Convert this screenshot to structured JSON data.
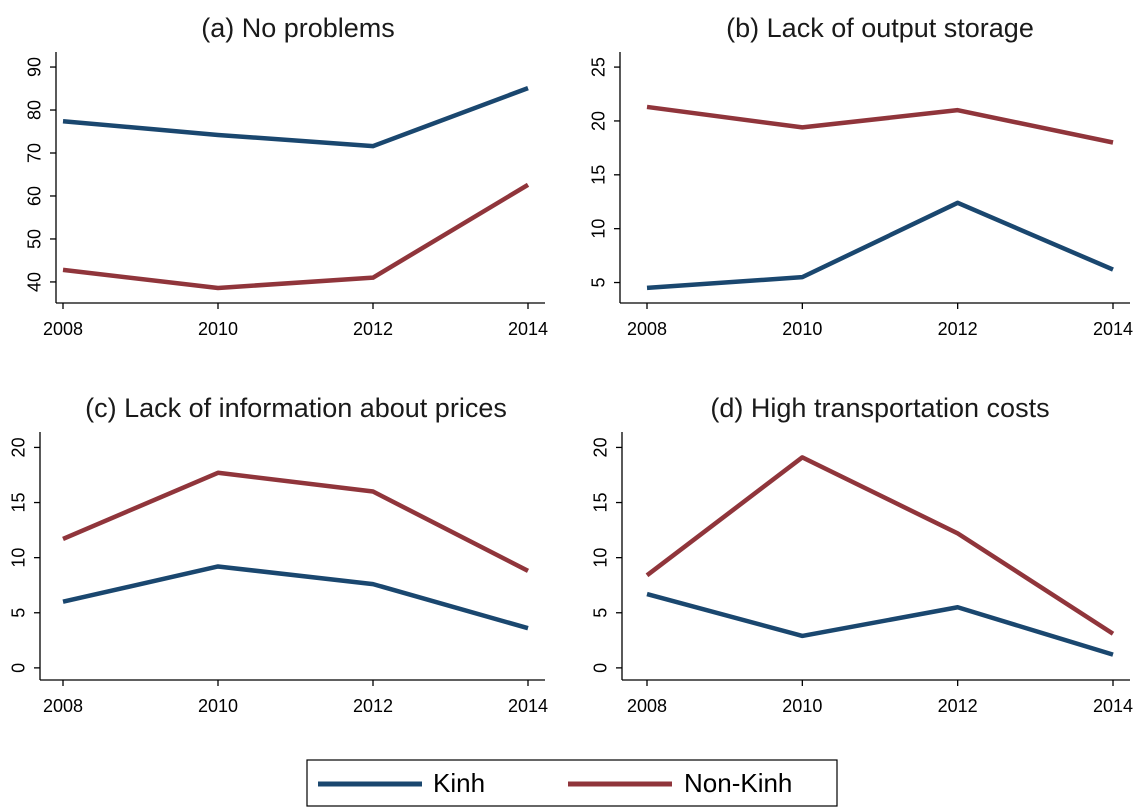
{
  "chart_data": [
    {
      "type": "line",
      "title": "(a) No problems",
      "x": [
        2008,
        2010,
        2012,
        2014
      ],
      "xlim": [
        2008,
        2014
      ],
      "xticks": [
        2008,
        2010,
        2012,
        2014
      ],
      "ylim": [
        35.1,
        93.5
      ],
      "yticks": [
        40,
        50,
        60,
        70,
        80,
        90
      ],
      "series": [
        {
          "name": "Kinh",
          "color": "#1a476f",
          "values": [
            77.4,
            74.2,
            71.6,
            85.1
          ]
        },
        {
          "name": "Non-Kinh",
          "color": "#90353b",
          "values": [
            42.8,
            38.6,
            41,
            62.6
          ]
        }
      ]
    },
    {
      "type": "line",
      "title": "(b) Lack of output storage",
      "x": [
        2008,
        2010,
        2012,
        2014
      ],
      "xlim": [
        2008,
        2014
      ],
      "xticks": [
        2008,
        2010,
        2012,
        2014
      ],
      "ylim": [
        3.1,
        26.4
      ],
      "yticks": [
        5,
        10,
        15,
        20,
        25
      ],
      "series": [
        {
          "name": "Kinh",
          "color": "#1a476f",
          "values": [
            4.5,
            5.5,
            12.4,
            6.2
          ]
        },
        {
          "name": "Non-Kinh",
          "color": "#90353b",
          "values": [
            21.3,
            19.4,
            21.0,
            18.0
          ]
        }
      ]
    },
    {
      "type": "line",
      "title": "(c) Lack of information about prices",
      "x": [
        2008,
        2010,
        2012,
        2014
      ],
      "xlim": [
        2008,
        2014
      ],
      "xticks": [
        2008,
        2010,
        2012,
        2014
      ],
      "ylim": [
        -1.1,
        21.4
      ],
      "yticks": [
        0,
        5,
        10,
        15,
        20
      ],
      "series": [
        {
          "name": "Kinh",
          "color": "#1a476f",
          "values": [
            6.0,
            9.2,
            7.6,
            3.6
          ]
        },
        {
          "name": "Non-Kinh",
          "color": "#90353b",
          "values": [
            11.7,
            17.7,
            16.0,
            8.8
          ]
        }
      ]
    },
    {
      "type": "line",
      "title": "(d) High transportation costs",
      "x": [
        2008,
        2010,
        2012,
        2014
      ],
      "xlim": [
        2008,
        2014
      ],
      "xticks": [
        2008,
        2010,
        2012,
        2014
      ],
      "ylim": [
        -1.1,
        21.4
      ],
      "yticks": [
        0,
        5,
        10,
        15,
        20
      ],
      "series": [
        {
          "name": "Kinh",
          "color": "#1a476f",
          "values": [
            6.7,
            2.9,
            5.5,
            1.2
          ]
        },
        {
          "name": "Non-Kinh",
          "color": "#90353b",
          "values": [
            8.4,
            19.1,
            12.2,
            3.1
          ]
        }
      ]
    }
  ]
}
